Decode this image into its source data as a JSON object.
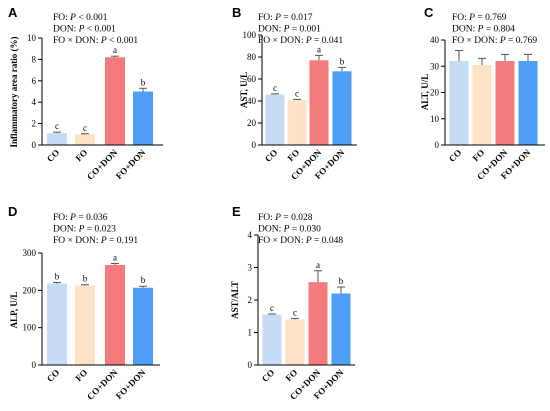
{
  "colors": {
    "CO": "#c6dcf6",
    "FO": "#fde2c6",
    "CO+DON": "#f47b7b",
    "FO+DON": "#4f9df5",
    "error_bar": "#555555",
    "axis": "#000000"
  },
  "chart_data": [
    {
      "panel": "A",
      "type": "bar",
      "categories": [
        "CO",
        "FO",
        "CO+DON",
        "FO+DON"
      ],
      "values": [
        1.1,
        1.0,
        8.2,
        5.0
      ],
      "errors": [
        0.1,
        0.05,
        0.1,
        0.3
      ],
      "letters": [
        "c",
        "c",
        "a",
        "b"
      ],
      "ylabel": "Inflammatory area ratio (%)",
      "ylim": [
        0,
        10
      ],
      "yticks": [
        0,
        2,
        4,
        6,
        8,
        10
      ],
      "stats": [
        {
          "term": "FO: ",
          "sym": "P",
          "rel": " < 0.001"
        },
        {
          "term": "DON: ",
          "sym": "P",
          "rel": " < 0.001"
        },
        {
          "term": "FO × DON: ",
          "sym": "P",
          "rel": " < 0.001"
        }
      ]
    },
    {
      "panel": "B",
      "type": "bar",
      "categories": [
        "CO",
        "FO",
        "CO+DON",
        "FO+DON"
      ],
      "values": [
        46,
        41,
        77,
        67
      ],
      "errors": [
        0.5,
        0.5,
        4.5,
        3.5
      ],
      "letters": [
        "c",
        "c",
        "a",
        "b"
      ],
      "ylabel": "AST, U/L",
      "ylim": [
        0,
        100
      ],
      "yticks": [
        0,
        20,
        40,
        60,
        80,
        100
      ],
      "stats": [
        {
          "term": "FO: ",
          "sym": "P",
          "rel": " = 0.017"
        },
        {
          "term": "DON: ",
          "sym": "P",
          "rel": " = 0.001"
        },
        {
          "term": "FO × DON: ",
          "sym": "P",
          "rel": " = 0.041"
        }
      ]
    },
    {
      "panel": "C",
      "type": "bar",
      "categories": [
        "CO",
        "FO",
        "CO+DON",
        "FO+DON"
      ],
      "values": [
        32,
        30.5,
        32,
        32
      ],
      "errors": [
        4,
        2.5,
        2.5,
        2.5
      ],
      "letters": [],
      "ylabel": "ALT, U/L",
      "ylim": [
        0,
        40
      ],
      "yticks": [
        0,
        10,
        20,
        30,
        40
      ],
      "stats": [
        {
          "term": "FO: ",
          "sym": "P",
          "rel": " = 0.769"
        },
        {
          "term": "DON: ",
          "sym": "P",
          "rel": " = 0.804"
        },
        {
          "term": "FO × DON: ",
          "sym": "P",
          "rel": " = 0.769"
        }
      ]
    },
    {
      "panel": "D",
      "type": "bar",
      "categories": [
        "CO",
        "FO",
        "CO+DON",
        "FO+DON"
      ],
      "values": [
        218,
        213,
        268,
        207
      ],
      "errors": [
        3,
        2,
        4,
        4
      ],
      "letters": [
        "b",
        "b",
        "a",
        "b"
      ],
      "ylabel": "ALP, U/L",
      "ylim": [
        0,
        300
      ],
      "yticks": [
        0,
        100,
        200,
        300
      ],
      "stats": [
        {
          "term": "FO: ",
          "sym": "P",
          "rel": " = 0.036"
        },
        {
          "term": "DON: ",
          "sym": "P",
          "rel": " = 0.023"
        },
        {
          "term": "FO × DON: ",
          "sym": "P",
          "rel": " = 0.191"
        }
      ]
    },
    {
      "panel": "E",
      "type": "bar",
      "categories": [
        "CO",
        "FO",
        "CO+DON",
        "FO+DON"
      ],
      "values": [
        1.55,
        1.4,
        2.55,
        2.2
      ],
      "errors": [
        0.02,
        0.03,
        0.35,
        0.2
      ],
      "letters": [
        "c",
        "c",
        "a",
        "b"
      ],
      "ylabel": "AST/ALT",
      "ylim": [
        0,
        4
      ],
      "yticks": [
        0,
        1,
        2,
        3,
        4
      ],
      "stats": [
        {
          "term": "FO: ",
          "sym": "P",
          "rel": " = 0.028"
        },
        {
          "term": "DON: ",
          "sym": "P",
          "rel": " = 0.030"
        },
        {
          "term": "FO × DON: ",
          "sym": "P",
          "rel": " = 0.048"
        }
      ]
    }
  ]
}
